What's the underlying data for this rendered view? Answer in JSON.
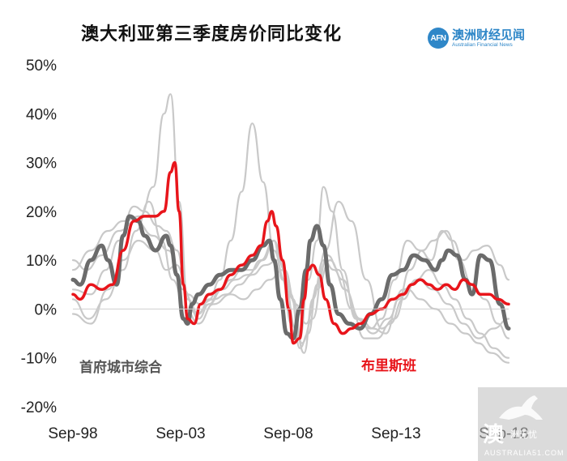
{
  "title": "澳大利亚第三季度房价同比变化",
  "logo": {
    "mark": "AFN",
    "name_cn": "澳洲财经见闻",
    "name_en": "Australian Financial News"
  },
  "watermark": {
    "big": "澳",
    "small": "洲无忧",
    "site": "AUSTRALIA51.COM"
  },
  "colors": {
    "composite": "#6b6b6b",
    "brisbane": "#e8151b",
    "other": "#c9c9c9",
    "axis": "#cfcfcf"
  },
  "chart_data": {
    "type": "line",
    "title": "澳大利亚第三季度房价同比变化",
    "xlabel": "",
    "ylabel": "",
    "ylim": [
      -20,
      50
    ],
    "y_ticks": [
      50,
      40,
      30,
      20,
      10,
      0,
      -10,
      -20
    ],
    "y_tick_labels": [
      "50%",
      "40%",
      "30%",
      "20%",
      "10%",
      "0%",
      "-10%",
      "-20%"
    ],
    "x_range": [
      1998.67,
      2018.9
    ],
    "x_ticks": [
      1998.67,
      2003.67,
      2008.67,
      2013.67,
      2018.67
    ],
    "x_tick_labels": [
      "Sep-98",
      "Sep-03",
      "Sep-08",
      "Sep-13",
      "Sep-18"
    ],
    "grid": false,
    "series": [
      {
        "name": "首府城市综合",
        "role": "composite",
        "x": [
          1998.67,
          1999.0,
          1999.5,
          2000.0,
          2000.3,
          2000.7,
          2001.0,
          2001.3,
          2001.7,
          2002.0,
          2002.5,
          2003.0,
          2003.2,
          2003.5,
          2003.8,
          2004.0,
          2004.2,
          2004.5,
          2005.0,
          2005.5,
          2006.0,
          2006.5,
          2007.0,
          2007.5,
          2007.8,
          2008.0,
          2008.3,
          2008.6,
          2008.9,
          2009.2,
          2009.5,
          2009.7,
          2010.0,
          2010.3,
          2010.6,
          2011.0,
          2011.5,
          2012.0,
          2012.5,
          2013.0,
          2013.5,
          2014.0,
          2014.5,
          2015.0,
          2015.5,
          2015.8,
          2016.1,
          2016.5,
          2016.9,
          2017.2,
          2017.6,
          2018.0,
          2018.5,
          2018.9
        ],
        "y": [
          6,
          5,
          10,
          13,
          10,
          5,
          15,
          19,
          18,
          15,
          12,
          15,
          13,
          7,
          -2,
          -3,
          1,
          3,
          5,
          7,
          8,
          8,
          10,
          13,
          14,
          10,
          2,
          -5,
          -6,
          0,
          8,
          14,
          17,
          13,
          5,
          -1,
          -3,
          -4,
          -1,
          2,
          7,
          8,
          11,
          10,
          8,
          10,
          12,
          11,
          6,
          3,
          11,
          10,
          1,
          -4
        ]
      },
      {
        "name": "布里斯班",
        "role": "brisbane",
        "x": [
          1998.67,
          1999.0,
          1999.5,
          2000.0,
          2000.5,
          2001.0,
          2001.5,
          2002.0,
          2002.5,
          2002.9,
          2003.2,
          2003.4,
          2003.6,
          2003.8,
          2004.0,
          2004.3,
          2004.6,
          2005.0,
          2005.5,
          2006.0,
          2006.5,
          2007.0,
          2007.4,
          2007.7,
          2007.9,
          2008.1,
          2008.4,
          2008.7,
          2008.9,
          2009.2,
          2009.4,
          2009.6,
          2009.8,
          2010.1,
          2010.4,
          2010.8,
          2011.2,
          2011.6,
          2012.0,
          2012.5,
          2013.0,
          2013.5,
          2014.0,
          2014.4,
          2014.8,
          2015.2,
          2015.6,
          2016.0,
          2016.4,
          2016.8,
          2017.2,
          2017.6,
          2018.0,
          2018.4,
          2018.9
        ],
        "y": [
          3,
          2,
          5,
          4,
          5,
          12,
          18,
          19,
          19,
          20,
          28,
          30,
          20,
          5,
          -2,
          -3,
          1,
          3,
          4,
          7,
          9,
          11,
          13,
          18,
          20,
          17,
          10,
          0,
          -7,
          -6,
          2,
          8,
          9,
          7,
          2,
          -3,
          -5,
          -4,
          -3,
          -1,
          0,
          2,
          3,
          5,
          6,
          5,
          4,
          5,
          4,
          6,
          5,
          3,
          3,
          2,
          1
        ]
      },
      {
        "role": "other",
        "x": [
          1998.67,
          1999.5,
          2000.3,
          2001.0,
          2001.8,
          2002.4,
          2002.9,
          2003.2,
          2003.6,
          2004.0,
          2004.5,
          2005.0,
          2005.5,
          2006.0,
          2006.5,
          2007.0,
          2007.5,
          2008.0,
          2008.4,
          2008.8,
          2009.2,
          2009.6,
          2010.0,
          2010.3,
          2010.7,
          2011.2,
          2011.8,
          2012.5,
          2013.0,
          2013.6,
          2014.2,
          2014.8,
          2015.3,
          2015.8,
          2016.3,
          2016.8,
          2017.3,
          2017.9,
          2018.5,
          2018.9
        ],
        "y": [
          8,
          12,
          16,
          18,
          19,
          25,
          40,
          44,
          22,
          2,
          -2,
          1,
          4,
          6,
          8,
          8,
          10,
          14,
          6,
          -3,
          -6,
          6,
          14,
          25,
          20,
          8,
          -2,
          -4,
          -2,
          6,
          14,
          12,
          10,
          16,
          14,
          10,
          12,
          13,
          9,
          6
        ]
      },
      {
        "role": "other",
        "x": [
          1998.67,
          1999.5,
          2000.2,
          2000.8,
          2001.5,
          2002.0,
          2002.6,
          2003.0,
          2003.5,
          2004.0,
          2004.5,
          2005.0,
          2005.5,
          2006.0,
          2006.5,
          2007.0,
          2007.5,
          2008.0,
          2008.5,
          2009.0,
          2009.4,
          2009.8,
          2010.3,
          2010.8,
          2011.3,
          2012.0,
          2012.6,
          2013.2,
          2013.8,
          2014.3,
          2014.9,
          2015.4,
          2016.0,
          2016.6,
          2017.2,
          2017.8,
          2018.4,
          2018.9
        ],
        "y": [
          4,
          3,
          8,
          14,
          21,
          20,
          17,
          16,
          12,
          2,
          -1,
          2,
          6,
          14,
          24,
          38,
          26,
          12,
          6,
          -4,
          -9,
          2,
          10,
          8,
          4,
          -2,
          -4,
          -5,
          2,
          8,
          12,
          14,
          16,
          10,
          5,
          2,
          -3,
          -6
        ]
      },
      {
        "role": "other",
        "x": [
          1998.67,
          1999.5,
          2000.3,
          2001.0,
          2001.7,
          2002.5,
          2003.0,
          2003.5,
          2004.0,
          2004.6,
          2005.2,
          2005.8,
          2006.4,
          2007.0,
          2007.6,
          2008.2,
          2008.8,
          2009.2,
          2009.6,
          2010.0,
          2010.5,
          2011.0,
          2011.6,
          2012.2,
          2012.8,
          2013.4,
          2014.0,
          2014.6,
          2015.2,
          2015.8,
          2016.4,
          2017.0,
          2017.6,
          2018.2,
          2018.9
        ],
        "y": [
          -1,
          -3,
          4,
          10,
          14,
          12,
          8,
          9,
          3,
          1,
          2,
          3,
          5,
          7,
          9,
          10,
          3,
          -8,
          -5,
          5,
          11,
          8,
          0,
          -6,
          -6,
          -3,
          2,
          6,
          8,
          5,
          2,
          -2,
          -5,
          -8,
          -10
        ]
      },
      {
        "role": "other",
        "x": [
          1998.67,
          1999.4,
          2000.2,
          2001.0,
          2001.6,
          2002.2,
          2002.8,
          2003.3,
          2003.9,
          2004.5,
          2005.2,
          2006.0,
          2006.6,
          2007.2,
          2007.8,
          2008.4,
          2008.9,
          2009.3,
          2009.8,
          2010.4,
          2011.0,
          2011.6,
          2012.3,
          2013.0,
          2013.6,
          2014.2,
          2014.8,
          2015.5,
          2016.2,
          2016.9,
          2017.5,
          2018.1,
          2018.9
        ],
        "y": [
          2,
          -2,
          2,
          8,
          16,
          22,
          14,
          6,
          0,
          -3,
          1,
          3,
          2,
          4,
          6,
          8,
          2,
          -7,
          -2,
          12,
          22,
          18,
          6,
          -4,
          -2,
          4,
          2,
          0,
          -3,
          -5,
          -7,
          -9,
          -11
        ]
      },
      {
        "role": "other",
        "x": [
          1998.67,
          1999.3,
          2000.0,
          2000.8,
          2001.6,
          2002.4,
          2003.1,
          2003.8,
          2004.4,
          2005.0,
          2005.6,
          2006.2,
          2006.8,
          2007.4,
          2008.0,
          2008.5,
          2009.0,
          2009.5,
          2010.0,
          2010.6,
          2011.2,
          2011.9,
          2012.6,
          2013.3,
          2014.0,
          2014.7,
          2015.4,
          2016.1,
          2016.8,
          2017.5,
          2018.2,
          2018.9
        ],
        "y": [
          10,
          8,
          11,
          16,
          18,
          15,
          12,
          4,
          -1,
          1,
          4,
          6,
          7,
          10,
          14,
          8,
          1,
          -3,
          4,
          10,
          6,
          -2,
          -5,
          -2,
          4,
          6,
          4,
          1,
          -3,
          -6,
          -4,
          -2
        ]
      }
    ],
    "annotations": [
      {
        "text": "首府城市综合",
        "color": "#555555"
      },
      {
        "text": "布里斯班",
        "color": "#e8151b"
      }
    ]
  }
}
